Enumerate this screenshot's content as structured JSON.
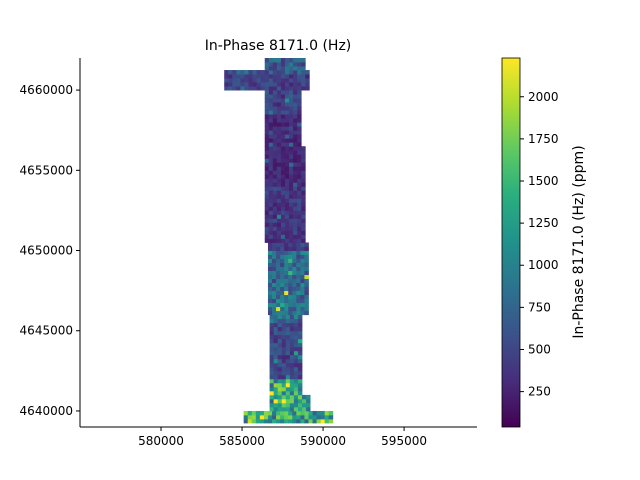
{
  "chart_data": {
    "type": "heatmap",
    "title": "In-Phase 8171.0 (Hz)",
    "xlabel": "",
    "ylabel": "",
    "xlim": [
      575000,
      599500
    ],
    "ylim": [
      4639000,
      4662000
    ],
    "x_ticks": [
      580000,
      585000,
      590000,
      595000
    ],
    "y_ticks": [
      4640000,
      4645000,
      4650000,
      4655000,
      4660000
    ],
    "x_tick_labels": [
      "580000",
      "585000",
      "590000",
      "595000"
    ],
    "y_tick_labels": [
      "4640000",
      "4645000",
      "4650000",
      "4655000",
      "4660000"
    ],
    "grid": false,
    "colormap": "viridis",
    "colorbar": {
      "label": "In-Phase 8171.0 (Hz) (ppm)",
      "range": [
        40,
        2230
      ],
      "ticks": [
        250,
        500,
        750,
        1000,
        1250,
        1500,
        1750,
        2000
      ],
      "tick_labels": [
        "250",
        "500",
        "750",
        "1000",
        "1250",
        "1500",
        "1750",
        "2000"
      ]
    },
    "grid_cell_size": [
      250,
      250
    ],
    "value_bands": [
      {
        "y_range": [
          4661000,
          4662000
        ],
        "typical_value": 650
      },
      {
        "y_range": [
          4658500,
          4661000
        ],
        "typical_value": 450
      },
      {
        "y_range": [
          4654000,
          4658500
        ],
        "typical_value": 300
      },
      {
        "y_range": [
          4650000,
          4654000
        ],
        "typical_value": 400
      },
      {
        "y_range": [
          4645500,
          4650000
        ],
        "typical_value": 800
      },
      {
        "y_range": [
          4642000,
          4645500
        ],
        "typical_value": 500
      },
      {
        "y_range": [
          4639000,
          4642000
        ],
        "typical_value": 1300
      }
    ],
    "coverage_columns": [
      {
        "y_range": [
          4661200,
          4662000
        ],
        "x_range": [
          586400,
          588700
        ]
      },
      {
        "y_range": [
          4660000,
          4661200
        ],
        "x_range": [
          583900,
          589100
        ]
      },
      {
        "y_range": [
          4656500,
          4660000
        ],
        "x_range": [
          586400,
          588600
        ]
      },
      {
        "y_range": [
          4650500,
          4656500
        ],
        "x_range": [
          586400,
          588900
        ]
      },
      {
        "y_range": [
          4646000,
          4650500
        ],
        "x_range": [
          586600,
          589100
        ]
      },
      {
        "y_range": [
          4641000,
          4646000
        ],
        "x_range": [
          586700,
          588700
        ]
      },
      {
        "y_range": [
          4640000,
          4641000
        ],
        "x_range": [
          586700,
          589000
        ]
      },
      {
        "y_range": [
          4639300,
          4640000
        ],
        "x_range": [
          585100,
          590400
        ]
      }
    ]
  }
}
